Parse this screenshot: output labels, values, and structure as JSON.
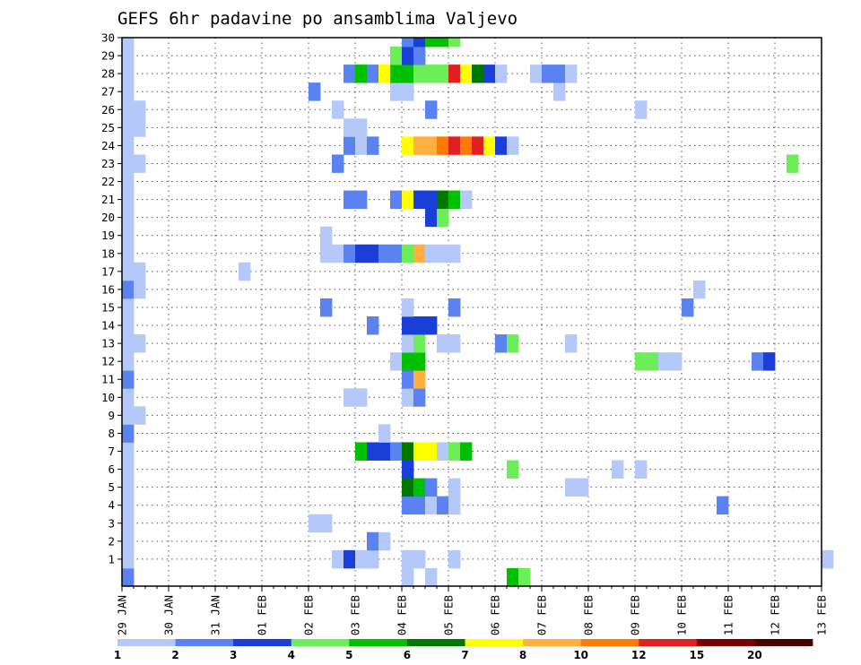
{
  "chart_data": {
    "type": "heatmap",
    "title": "GEFS 6hr padavine po ansamblima Valjevo",
    "x_ticks": [
      "29 JAN",
      "30 JAN",
      "31 JAN",
      "01 FEB",
      "02 FEB",
      "03 FEB",
      "04 FEB",
      "05 FEB",
      "06 FEB",
      "07 FEB",
      "08 FEB",
      "09 FEB",
      "10 FEB",
      "11 FEB",
      "12 FEB",
      "13 FEB"
    ],
    "y_ticks": [
      "1",
      "2",
      "3",
      "4",
      "5",
      "6",
      "7",
      "8",
      "9",
      "10",
      "11",
      "12",
      "13",
      "14",
      "15",
      "16",
      "17",
      "18",
      "19",
      "20",
      "21",
      "22",
      "23",
      "24",
      "25",
      "26",
      "27",
      "28",
      "29",
      "30"
    ],
    "xlim_days": [
      0,
      15
    ],
    "ylim_members": [
      0,
      30
    ],
    "step_hours": 6,
    "grid": true,
    "legend_placement": "bottom",
    "legend": {
      "colors": [
        "#b4c8fa",
        "#5a82f0",
        "#1a3fd8",
        "#6cee58",
        "#00c000",
        "#007800",
        "#ffff00",
        "#ffb040",
        "#ff7a00",
        "#e02020",
        "#780000",
        "#4a0000"
      ],
      "labels": [
        "1",
        "2",
        "3",
        "4",
        "5",
        "6",
        "7",
        "8",
        "10",
        "12",
        "15",
        "20"
      ]
    },
    "cells": [
      [
        0,
        0,
        2
      ],
      [
        0,
        1,
        1
      ],
      [
        0,
        2,
        1
      ],
      [
        0,
        3,
        1
      ],
      [
        0,
        4,
        1
      ],
      [
        0,
        5,
        1
      ],
      [
        0,
        6,
        1
      ],
      [
        0,
        7,
        1
      ],
      [
        0,
        8,
        2
      ],
      [
        0,
        9,
        1
      ],
      [
        0,
        10,
        1
      ],
      [
        0,
        11,
        2
      ],
      [
        0,
        12,
        1
      ],
      [
        0,
        13,
        1
      ],
      [
        0,
        14,
        1
      ],
      [
        0,
        15,
        1
      ],
      [
        0,
        16,
        2
      ],
      [
        0,
        17,
        1
      ],
      [
        0,
        18,
        1
      ],
      [
        0,
        19,
        1
      ],
      [
        0,
        20,
        1
      ],
      [
        0,
        21,
        1
      ],
      [
        0,
        22,
        1
      ],
      [
        0,
        23,
        1
      ],
      [
        0,
        24,
        1
      ],
      [
        0,
        25,
        1
      ],
      [
        0,
        26,
        1
      ],
      [
        0,
        27,
        1
      ],
      [
        0,
        28,
        1
      ],
      [
        0,
        29,
        1
      ],
      [
        0,
        30,
        1
      ],
      [
        1,
        9,
        1
      ],
      [
        1,
        13,
        1
      ],
      [
        1,
        16,
        1
      ],
      [
        1,
        17,
        1
      ],
      [
        1,
        23,
        1
      ],
      [
        1,
        25,
        1
      ],
      [
        1,
        26,
        1
      ],
      [
        10,
        17,
        1
      ],
      [
        16,
        3,
        1
      ],
      [
        17,
        3,
        1
      ],
      [
        16,
        27,
        2
      ],
      [
        17,
        15,
        2
      ],
      [
        17,
        18,
        1
      ],
      [
        17,
        19,
        1
      ],
      [
        18,
        1,
        1
      ],
      [
        18,
        18,
        1
      ],
      [
        18,
        23,
        2
      ],
      [
        18,
        26,
        1
      ],
      [
        19,
        1,
        3
      ],
      [
        19,
        10,
        1
      ],
      [
        19,
        18,
        2
      ],
      [
        19,
        21,
        2
      ],
      [
        19,
        24,
        2
      ],
      [
        19,
        25,
        1
      ],
      [
        19,
        28,
        2
      ],
      [
        20,
        1,
        1
      ],
      [
        20,
        7,
        5
      ],
      [
        20,
        10,
        1
      ],
      [
        20,
        18,
        3
      ],
      [
        20,
        21,
        2
      ],
      [
        20,
        24,
        1
      ],
      [
        20,
        25,
        1
      ],
      [
        20,
        28,
        5
      ],
      [
        21,
        1,
        1
      ],
      [
        21,
        2,
        2
      ],
      [
        21,
        7,
        3
      ],
      [
        21,
        14,
        2
      ],
      [
        21,
        18,
        3
      ],
      [
        21,
        24,
        2
      ],
      [
        21,
        28,
        2
      ],
      [
        22,
        2,
        1
      ],
      [
        22,
        7,
        3
      ],
      [
        22,
        8,
        1
      ],
      [
        22,
        18,
        2
      ],
      [
        22,
        28,
        7
      ],
      [
        23,
        7,
        2
      ],
      [
        23,
        12,
        1
      ],
      [
        23,
        18,
        2
      ],
      [
        23,
        21,
        2
      ],
      [
        23,
        27,
        1
      ],
      [
        23,
        28,
        5
      ],
      [
        23,
        29,
        4
      ],
      [
        24,
        0,
        1
      ],
      [
        24,
        1,
        1
      ],
      [
        24,
        4,
        2
      ],
      [
        24,
        5,
        6
      ],
      [
        24,
        6,
        3
      ],
      [
        24,
        7,
        6
      ],
      [
        24,
        10,
        1
      ],
      [
        24,
        11,
        2
      ],
      [
        24,
        12,
        5
      ],
      [
        24,
        13,
        1
      ],
      [
        24,
        14,
        3
      ],
      [
        24,
        15,
        1
      ],
      [
        24,
        18,
        4
      ],
      [
        24,
        21,
        7
      ],
      [
        24,
        24,
        7
      ],
      [
        24,
        27,
        1
      ],
      [
        24,
        28,
        5
      ],
      [
        24,
        29,
        3
      ],
      [
        24,
        30,
        2
      ],
      [
        25,
        1,
        1
      ],
      [
        25,
        4,
        2
      ],
      [
        25,
        5,
        5
      ],
      [
        25,
        7,
        7
      ],
      [
        25,
        10,
        2
      ],
      [
        25,
        11,
        8
      ],
      [
        25,
        12,
        5
      ],
      [
        25,
        13,
        4
      ],
      [
        25,
        14,
        3
      ],
      [
        25,
        18,
        8
      ],
      [
        25,
        21,
        3
      ],
      [
        25,
        24,
        8
      ],
      [
        25,
        28,
        4
      ],
      [
        25,
        29,
        2
      ],
      [
        25,
        30,
        3
      ],
      [
        26,
        0,
        1
      ],
      [
        26,
        4,
        1
      ],
      [
        26,
        5,
        2
      ],
      [
        26,
        7,
        7
      ],
      [
        26,
        14,
        3
      ],
      [
        26,
        18,
        1
      ],
      [
        26,
        20,
        3
      ],
      [
        26,
        21,
        3
      ],
      [
        26,
        24,
        8
      ],
      [
        26,
        26,
        2
      ],
      [
        26,
        28,
        4
      ],
      [
        26,
        30,
        5
      ],
      [
        27,
        4,
        2
      ],
      [
        27,
        7,
        1
      ],
      [
        27,
        13,
        1
      ],
      [
        27,
        18,
        1
      ],
      [
        27,
        20,
        4
      ],
      [
        27,
        21,
        6
      ],
      [
        27,
        24,
        9
      ],
      [
        27,
        28,
        4
      ],
      [
        27,
        30,
        5
      ],
      [
        28,
        1,
        1
      ],
      [
        28,
        4,
        1
      ],
      [
        28,
        5,
        1
      ],
      [
        28,
        7,
        4
      ],
      [
        28,
        13,
        1
      ],
      [
        28,
        15,
        2
      ],
      [
        28,
        18,
        1
      ],
      [
        28,
        21,
        5
      ],
      [
        28,
        24,
        10
      ],
      [
        28,
        28,
        10
      ],
      [
        28,
        30,
        4
      ],
      [
        29,
        7,
        5
      ],
      [
        29,
        21,
        1
      ],
      [
        29,
        24,
        9
      ],
      [
        29,
        28,
        7
      ],
      [
        30,
        24,
        10
      ],
      [
        30,
        28,
        6
      ],
      [
        31,
        24,
        7
      ],
      [
        31,
        28,
        3
      ],
      [
        32,
        13,
        2
      ],
      [
        32,
        24,
        3
      ],
      [
        32,
        28,
        1
      ],
      [
        33,
        0,
        5
      ],
      [
        33,
        6,
        4
      ],
      [
        33,
        13,
        4
      ],
      [
        33,
        24,
        1
      ],
      [
        34,
        0,
        4
      ],
      [
        35,
        28,
        1
      ],
      [
        36,
        28,
        2
      ],
      [
        37,
        27,
        1
      ],
      [
        37,
        28,
        2
      ],
      [
        38,
        13,
        1
      ],
      [
        38,
        28,
        1
      ],
      [
        38,
        5,
        1
      ],
      [
        39,
        5,
        1
      ],
      [
        42,
        6,
        1
      ],
      [
        44,
        6,
        1
      ],
      [
        44,
        12,
        4
      ],
      [
        44,
        26,
        1
      ],
      [
        45,
        12,
        4
      ],
      [
        46,
        12,
        1
      ],
      [
        47,
        12,
        1
      ],
      [
        48,
        15,
        2
      ],
      [
        49,
        16,
        1
      ],
      [
        51,
        4,
        2
      ],
      [
        54,
        12,
        2
      ],
      [
        55,
        12,
        3
      ],
      [
        57,
        23,
        4
      ],
      [
        60,
        1,
        1
      ]
    ]
  }
}
